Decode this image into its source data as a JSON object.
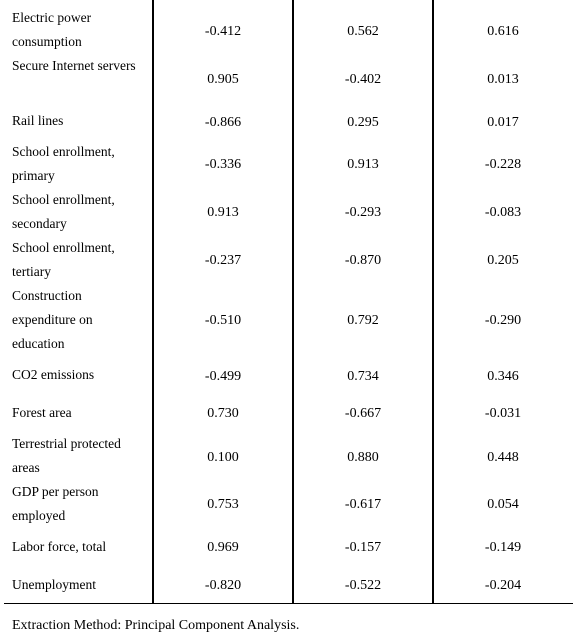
{
  "rows": [
    {
      "label": "Electric power consumption",
      "values": [
        "-0.412",
        "0.562",
        "0.616"
      ]
    },
    {
      "label": "Secure Internet servers",
      "values": [
        "0.905",
        "-0.402",
        "0.013"
      ]
    },
    {
      "label": "Rail lines",
      "values": [
        "-0.866",
        "0.295",
        "0.017"
      ]
    },
    {
      "label": "School enrollment, primary",
      "values": [
        "-0.336",
        "0.913",
        "-0.228"
      ]
    },
    {
      "label": "School enrollment, secondary",
      "values": [
        "0.913",
        "-0.293",
        "-0.083"
      ]
    },
    {
      "label": "School enrollment, tertiary",
      "values": [
        "-0.237",
        "-0.870",
        "0.205"
      ]
    },
    {
      "label": "Construction expenditure on education",
      "values": [
        "-0.510",
        "0.792",
        "-0.290"
      ]
    },
    {
      "label": "CO2 emissions",
      "values": [
        "-0.499",
        "0.734",
        "0.346"
      ]
    },
    {
      "label": "Forest area",
      "values": [
        "0.730",
        "-0.667",
        "-0.031"
      ]
    },
    {
      "label": "Terrestrial protected areas",
      "values": [
        "0.100",
        "0.880",
        "0.448"
      ]
    },
    {
      "label": "GDP per person employed",
      "values": [
        "0.753",
        "-0.617",
        "0.054"
      ]
    },
    {
      "label": "Labor force, total",
      "values": [
        "0.969",
        "-0.157",
        "-0.149"
      ]
    },
    {
      "label": "Unemployment",
      "values": [
        "-0.820",
        "-0.522",
        "-0.204"
      ]
    }
  ],
  "footnote": "Extraction Method: Principal Component Analysis."
}
